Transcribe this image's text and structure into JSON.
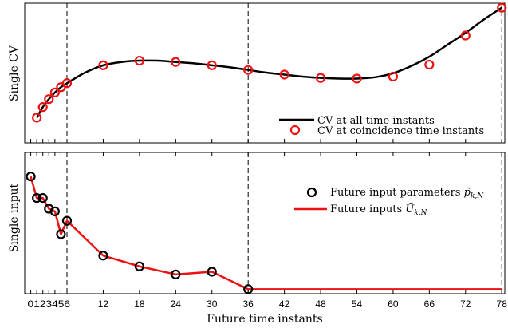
{
  "chart_data": [
    {
      "type": "line",
      "ylabel": "Single CV",
      "xlim": [
        -1,
        78.5
      ],
      "ylim": [
        0,
        1
      ],
      "vlines": [
        6,
        36,
        78
      ],
      "series": [
        {
          "name": "CV at all time instants",
          "color": "#000000",
          "style": "line",
          "x": [
            1,
            2,
            3,
            4,
            5,
            6,
            9,
            12,
            15,
            18,
            21,
            24,
            27,
            30,
            33,
            36,
            39,
            42,
            45,
            48,
            51,
            54,
            57,
            60,
            63,
            66,
            69,
            72,
            75,
            78
          ],
          "y": [
            0.16,
            0.24,
            0.3,
            0.35,
            0.39,
            0.42,
            0.5,
            0.555,
            0.58,
            0.59,
            0.59,
            0.58,
            0.57,
            0.555,
            0.54,
            0.52,
            0.5,
            0.485,
            0.47,
            0.46,
            0.455,
            0.455,
            0.465,
            0.495,
            0.55,
            0.62,
            0.71,
            0.8,
            0.9,
            0.99
          ]
        },
        {
          "name": "CV at coincidence time instants",
          "color": "#ee1111",
          "style": "circle",
          "x": [
            1,
            2,
            3,
            4,
            5,
            6,
            12,
            18,
            24,
            30,
            36,
            42,
            48,
            54,
            60,
            66,
            72,
            78
          ],
          "y": [
            0.16,
            0.24,
            0.3,
            0.35,
            0.39,
            0.42,
            0.555,
            0.59,
            0.58,
            0.555,
            0.52,
            0.485,
            0.46,
            0.455,
            0.47,
            0.56,
            0.78,
            0.99
          ]
        }
      ]
    },
    {
      "type": "line",
      "ylabel": "Single input",
      "xlabel": "Future time instants",
      "xlim": [
        -1,
        78.5
      ],
      "ylim": [
        0,
        1
      ],
      "vlines": [
        6,
        36,
        78
      ],
      "xticks": [
        0,
        1,
        2,
        3,
        4,
        5,
        6,
        12,
        18,
        24,
        30,
        36,
        42,
        48,
        54,
        60,
        66,
        72,
        78
      ],
      "xtick_labels_small": "0123456",
      "series": [
        {
          "name": "Future input parameters p̃k,N",
          "color": "#000000",
          "style": "circle",
          "x": [
            0,
            1,
            2,
            3,
            4,
            5,
            6,
            12,
            18,
            24,
            30,
            36
          ],
          "y": [
            0.85,
            0.69,
            0.69,
            0.61,
            0.59,
            0.42,
            0.52,
            0.26,
            0.18,
            0.12,
            0.14,
            0.01
          ]
        },
        {
          "name": "Future inputs Ũk,N",
          "color": "#ee1111",
          "style": "line",
          "x": [
            0,
            1,
            2,
            3,
            4,
            5,
            6,
            12,
            18,
            24,
            30,
            36,
            78
          ],
          "y": [
            0.85,
            0.69,
            0.69,
            0.61,
            0.59,
            0.42,
            0.52,
            0.26,
            0.18,
            0.12,
            0.14,
            0.01,
            0.01
          ]
        }
      ]
    }
  ],
  "labels": {
    "top_ylabel": "Single CV",
    "bottom_ylabel": "Single input",
    "xlabel": "Future time instants",
    "legend_top_1": "CV at all time instants",
    "legend_top_2": "CV at coincidence time instants",
    "legend_bottom_1_prefix": "Future input parameters ",
    "legend_bottom_1_sym": "p̃",
    "legend_bottom_1_sub": "k,N",
    "legend_bottom_2_prefix": "Future inputs ",
    "legend_bottom_2_sym": "Ũ",
    "legend_bottom_2_sub": "k,N"
  }
}
